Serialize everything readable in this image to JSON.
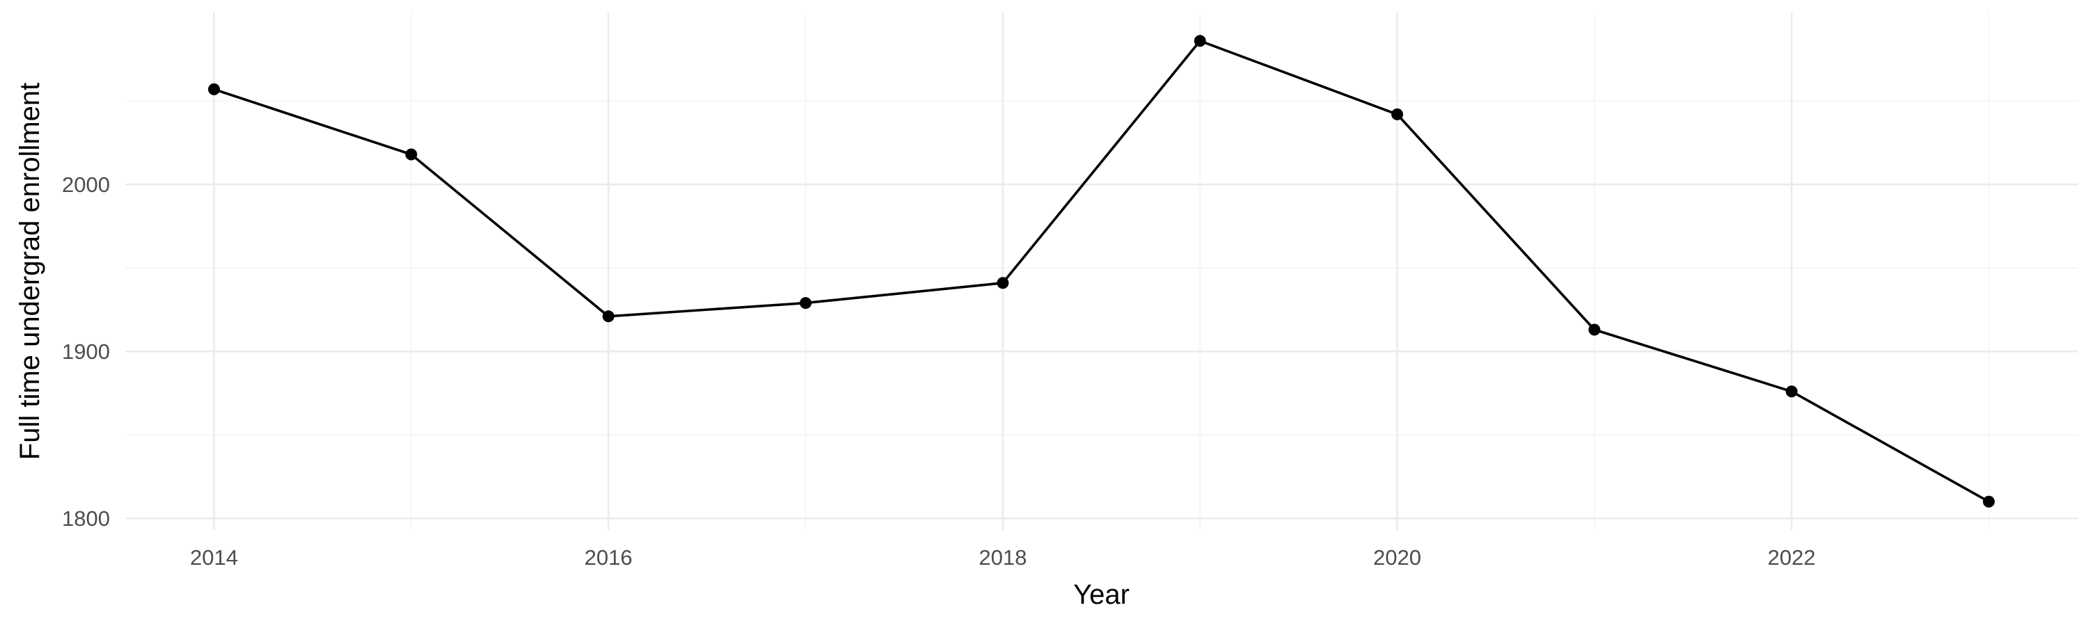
{
  "chart_data": {
    "type": "line",
    "xlabel": "Year",
    "ylabel": "Full time undergrad enrollment",
    "x": [
      2014,
      2015,
      2016,
      2017,
      2018,
      2019,
      2020,
      2021,
      2022,
      2023
    ],
    "series": [
      {
        "values": [
          2057,
          2018,
          1921,
          1929,
          1941,
          2086,
          2042,
          1913,
          1876,
          1810
        ],
        "color": "#000000"
      }
    ],
    "xlim": [
      2013.55,
      2023.45
    ],
    "ylim": [
      1793,
      2103
    ],
    "x_ticks": [
      2014,
      2016,
      2018,
      2020,
      2022
    ],
    "x_tick_labels": [
      "2014",
      "2016",
      "2018",
      "2020",
      "2022"
    ],
    "y_ticks": [
      1800,
      1900,
      2000
    ],
    "y_tick_labels": [
      "1800",
      "1900",
      "2000"
    ],
    "x_minor_ticks": [
      2015,
      2017,
      2019,
      2021,
      2023
    ],
    "y_minor_ticks": [
      1850,
      1950,
      2050
    ],
    "grid": true,
    "legend": "none",
    "theme": "minimal"
  }
}
